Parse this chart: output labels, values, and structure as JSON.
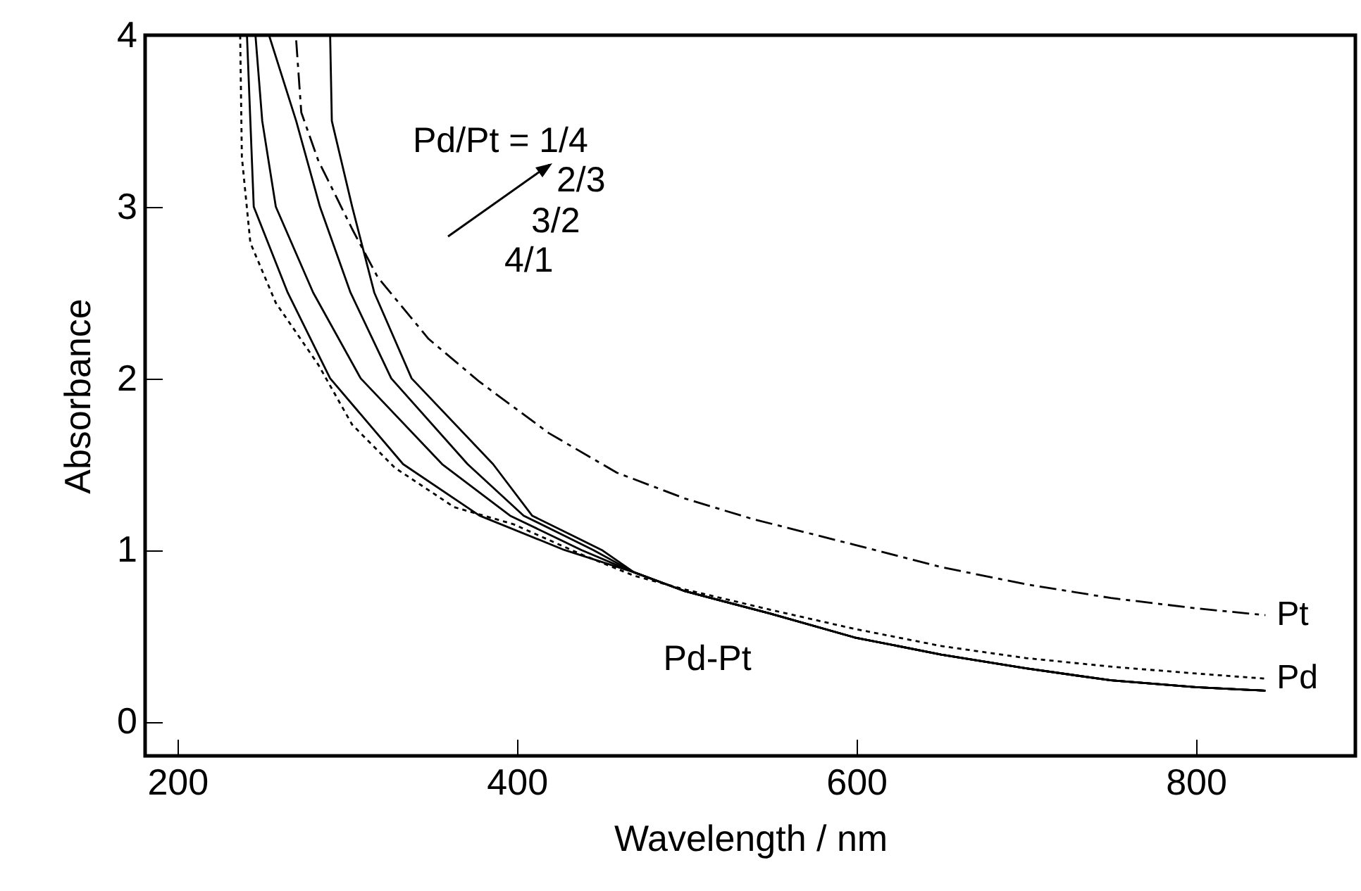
{
  "chart_data": {
    "type": "line",
    "xlabel": "Wavelength / nm",
    "ylabel": "Absorbance",
    "xlim": [
      181,
      894
    ],
    "ylim": [
      -0.2,
      4
    ],
    "xticks": [
      200,
      400,
      600,
      800
    ],
    "yticks": [
      {
        "value": 0,
        "label": "0"
      },
      {
        "value": 1,
        "label": "1"
      },
      {
        "value": 2,
        "label": "2"
      },
      {
        "value": 3,
        "label": "3"
      },
      {
        "value": 4,
        "label": "4"
      }
    ],
    "annotations": [
      "Pd/Pt = 1/4",
      "2/3",
      "3/2",
      "4/1",
      "Pd-Pt"
    ],
    "series": [
      {
        "name": "Pt",
        "color": "#000000",
        "line_style": "dashed",
        "x": [
          270,
          273,
          283,
          303,
          318,
          348,
          378,
          419,
          459,
          499,
          539,
          599,
          650,
          700,
          750,
          800,
          841
        ],
        "values": [
          3.97,
          3.55,
          3.27,
          2.87,
          2.59,
          2.23,
          1.98,
          1.68,
          1.45,
          1.3,
          1.18,
          1.03,
          0.9,
          0.8,
          0.72,
          0.66,
          0.62
        ]
      },
      {
        "name": "Pd",
        "color": "#000000",
        "line_style": "dotted",
        "x": [
          237,
          238,
          243,
          258,
          283,
          303,
          328,
          363,
          398,
          439,
          469,
          499,
          550,
          599,
          650,
          700,
          750,
          800,
          841
        ],
        "values": [
          4.0,
          3.29,
          2.79,
          2.44,
          2.08,
          1.73,
          1.48,
          1.25,
          1.15,
          0.97,
          0.85,
          0.77,
          0.65,
          0.54,
          0.44,
          0.37,
          0.32,
          0.28,
          0.25
        ]
      },
      {
        "color": "#000000",
        "line_style": "solid",
        "x": [
          241,
          243,
          245,
          265,
          290,
          333,
          378,
          428,
          469,
          499,
          549,
          599,
          650,
          700,
          750,
          800,
          841
        ],
        "values": [
          4.0,
          3.5,
          3.0,
          2.5,
          2.0,
          1.5,
          1.2,
          1.0,
          0.87,
          0.76,
          0.63,
          0.49,
          0.39,
          0.31,
          0.24,
          0.2,
          0.18
        ]
      },
      {
        "color": "#000000",
        "line_style": "solid",
        "x": [
          246,
          250,
          258,
          280,
          308,
          356,
          396,
          438,
          469,
          499,
          549,
          599,
          650,
          700,
          750,
          800,
          841
        ],
        "values": [
          4.0,
          3.5,
          3.0,
          2.5,
          2.0,
          1.5,
          1.2,
          1.0,
          0.87,
          0.76,
          0.63,
          0.49,
          0.39,
          0.31,
          0.24,
          0.2,
          0.18
        ]
      },
      {
        "color": "#000000",
        "line_style": "solid",
        "x": [
          254,
          270,
          284,
          302,
          326,
          371,
          404,
          445,
          469,
          499,
          549,
          599,
          650,
          700,
          750,
          800,
          841
        ],
        "values": [
          4.0,
          3.5,
          3.0,
          2.5,
          2.0,
          1.5,
          1.2,
          1.0,
          0.87,
          0.76,
          0.63,
          0.49,
          0.39,
          0.31,
          0.24,
          0.2,
          0.18
        ]
      },
      {
        "color": "#000000",
        "line_style": "solid",
        "x": [
          290,
          291,
          303,
          316,
          338,
          386,
          409,
          450,
          469,
          499,
          549,
          599,
          650,
          700,
          750,
          800,
          841
        ],
        "values": [
          4.0,
          3.5,
          3.0,
          2.5,
          2.0,
          1.5,
          1.2,
          1.0,
          0.87,
          0.76,
          0.63,
          0.49,
          0.39,
          0.31,
          0.24,
          0.2,
          0.18
        ]
      }
    ]
  }
}
